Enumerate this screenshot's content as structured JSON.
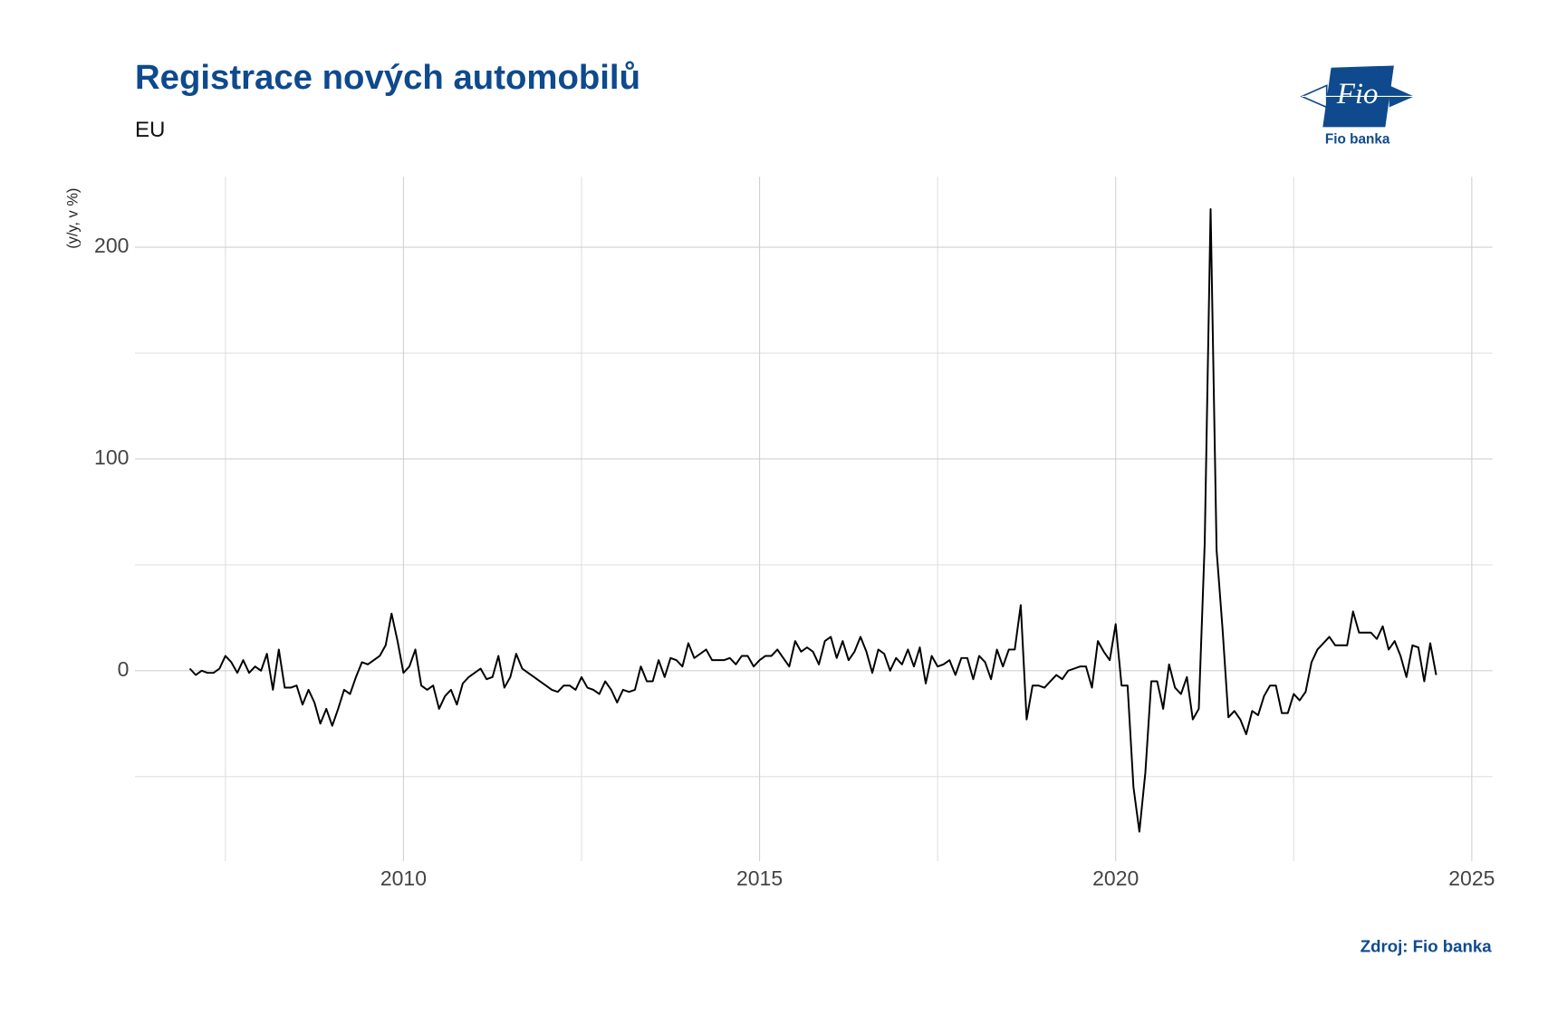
{
  "chart_data": {
    "type": "line",
    "title": "Registrace nových automobilů",
    "subtitle": "EU",
    "y_label": "(y/y, v %)",
    "source": "Zdroj: Fio banka",
    "logo_text": "Fio",
    "logo_caption": "Fio banka",
    "xlim": [
      2006.23,
      2025.29
    ],
    "ylim": [
      -89.9,
      233.3
    ],
    "xticks": [
      2010,
      2015,
      2020,
      2025
    ],
    "yticks": [
      0,
      100,
      200
    ],
    "xticks_minor": [
      2007.5,
      2012.5,
      2017.5,
      2022.5
    ],
    "yticks_minor": [
      -50,
      50,
      150
    ],
    "grid": true,
    "x": [
      2007,
      2007.083,
      2007.167,
      2007.25,
      2007.333,
      2007.417,
      2007.5,
      2007.583,
      2007.667,
      2007.75,
      2007.833,
      2007.917,
      2008,
      2008.083,
      2008.167,
      2008.25,
      2008.333,
      2008.417,
      2008.5,
      2008.583,
      2008.667,
      2008.75,
      2008.833,
      2008.917,
      2009,
      2009.083,
      2009.167,
      2009.25,
      2009.333,
      2009.417,
      2009.5,
      2009.583,
      2009.667,
      2009.75,
      2009.833,
      2009.917,
      2010,
      2010.083,
      2010.167,
      2010.25,
      2010.333,
      2010.417,
      2010.5,
      2010.583,
      2010.667,
      2010.75,
      2010.833,
      2010.917,
      2011,
      2011.083,
      2011.167,
      2011.25,
      2011.333,
      2011.417,
      2011.5,
      2011.583,
      2011.667,
      2011.75,
      2011.833,
      2011.917,
      2012,
      2012.083,
      2012.167,
      2012.25,
      2012.333,
      2012.417,
      2012.5,
      2012.583,
      2012.667,
      2012.75,
      2012.833,
      2012.917,
      2013,
      2013.083,
      2013.167,
      2013.25,
      2013.333,
      2013.417,
      2013.5,
      2013.583,
      2013.667,
      2013.75,
      2013.833,
      2013.917,
      2014,
      2014.083,
      2014.167,
      2014.25,
      2014.333,
      2014.417,
      2014.5,
      2014.583,
      2014.667,
      2014.75,
      2014.833,
      2014.917,
      2015,
      2015.083,
      2015.167,
      2015.25,
      2015.333,
      2015.417,
      2015.5,
      2015.583,
      2015.667,
      2015.75,
      2015.833,
      2015.917,
      2016,
      2016.083,
      2016.167,
      2016.25,
      2016.333,
      2016.417,
      2016.5,
      2016.583,
      2016.667,
      2016.75,
      2016.833,
      2016.917,
      2017,
      2017.083,
      2017.167,
      2017.25,
      2017.333,
      2017.417,
      2017.5,
      2017.583,
      2017.667,
      2017.75,
      2017.833,
      2017.917,
      2018,
      2018.083,
      2018.167,
      2018.25,
      2018.333,
      2018.417,
      2018.5,
      2018.583,
      2018.667,
      2018.75,
      2018.833,
      2018.917,
      2019,
      2019.083,
      2019.167,
      2019.25,
      2019.333,
      2019.417,
      2019.5,
      2019.583,
      2019.667,
      2019.75,
      2019.833,
      2019.917,
      2020,
      2020.083,
      2020.167,
      2020.25,
      2020.333,
      2020.417,
      2020.5,
      2020.583,
      2020.667,
      2020.75,
      2020.833,
      2020.917,
      2021,
      2021.083,
      2021.167,
      2021.25,
      2021.333,
      2021.417,
      2021.5,
      2021.583,
      2021.667,
      2021.75,
      2021.833,
      2021.917,
      2022,
      2022.083,
      2022.167,
      2022.25,
      2022.333,
      2022.417,
      2022.5,
      2022.583,
      2022.667,
      2022.75,
      2022.833,
      2022.917,
      2023,
      2023.083,
      2023.167,
      2023.25,
      2023.333,
      2023.417,
      2023.5,
      2023.583,
      2023.667,
      2023.75,
      2023.833,
      2023.917,
      2024,
      2024.083,
      2024.167,
      2024.25,
      2024.333,
      2024.417,
      2024.5
    ],
    "series": [
      {
        "color": "#000000",
        "values": [
          1,
          -2,
          0,
          -1,
          -1,
          1,
          7,
          4,
          -1,
          5,
          -1,
          2,
          0,
          8,
          -9,
          10,
          -8,
          -8,
          -7,
          -16,
          -9,
          -15,
          -25,
          -18,
          -26,
          -18,
          -9,
          -11,
          -3,
          4,
          3,
          5,
          7,
          12,
          27,
          14,
          -1,
          2,
          10,
          -7,
          -9,
          -7,
          -18,
          -12,
          -9,
          -16,
          -6,
          -3,
          -1,
          1,
          -4,
          -3,
          7,
          -8,
          -3,
          8,
          1,
          -1,
          -3,
          -5,
          -7,
          -9,
          -10,
          -7,
          -7,
          -9,
          -3,
          -8,
          -9,
          -11,
          -5,
          -9,
          -15,
          -9,
          -10,
          -9,
          2,
          -5,
          -5,
          5,
          -3,
          6,
          5,
          2,
          13,
          6,
          8,
          10,
          5,
          5,
          5,
          6,
          3,
          7,
          7,
          2,
          5,
          7,
          7,
          10,
          6,
          2,
          14,
          9,
          11,
          9,
          3,
          14,
          16,
          6,
          14,
          5,
          9,
          16,
          9,
          -1,
          10,
          8,
          0,
          6,
          3,
          10,
          2,
          11,
          -6,
          7,
          2,
          3,
          5,
          -2,
          6,
          6,
          -4,
          7,
          4,
          -4,
          10,
          2,
          10,
          10,
          31,
          -23,
          -7,
          -7,
          -8,
          -5,
          -2,
          -4,
          0,
          1,
          2,
          2,
          -8,
          14,
          9,
          5,
          22,
          -7,
          -7,
          -55,
          -76,
          -48,
          -5,
          -5,
          -18,
          3,
          -8,
          -11,
          -3,
          -23,
          -18,
          60,
          218,
          57,
          20,
          -22,
          -19,
          -23,
          -30,
          -19,
          -21,
          -12,
          -7,
          -7,
          -20,
          -20,
          -11,
          -14,
          -10,
          4,
          10,
          13,
          16,
          12,
          12,
          12,
          28,
          18,
          18,
          18,
          15,
          21,
          10,
          14,
          7,
          -3,
          12,
          11,
          -5,
          13,
          -2
        ]
      }
    ]
  }
}
